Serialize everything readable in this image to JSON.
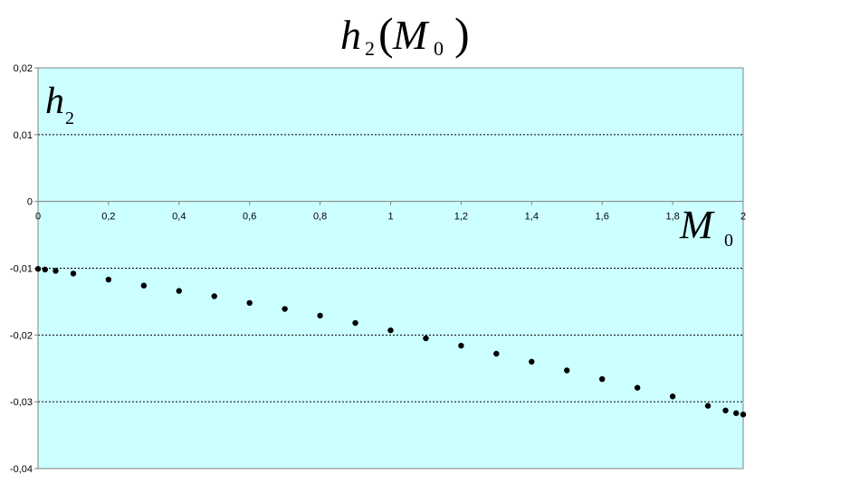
{
  "chart_data": {
    "type": "scatter",
    "title": {
      "func": "h",
      "func_sub": "2",
      "open": "(",
      "arg": "M",
      "arg_sub": "0",
      "close": ")"
    },
    "ylabel": {
      "main": "h",
      "sub": "2"
    },
    "xlabel": {
      "main": "M",
      "sub": "0"
    },
    "xlim": [
      0,
      2
    ],
    "ylim": [
      -0.04,
      0.02
    ],
    "x_ticks": [
      {
        "value": 0,
        "label": "0"
      },
      {
        "value": 0.2,
        "label": "0,2"
      },
      {
        "value": 0.4,
        "label": "0,4"
      },
      {
        "value": 0.6,
        "label": "0,6"
      },
      {
        "value": 0.8,
        "label": "0,8"
      },
      {
        "value": 1.0,
        "label": "1"
      },
      {
        "value": 1.2,
        "label": "1,2"
      },
      {
        "value": 1.4,
        "label": "1,4"
      },
      {
        "value": 1.6,
        "label": "1,6"
      },
      {
        "value": 1.8,
        "label": "1,8"
      },
      {
        "value": 2.0,
        "label": "2"
      }
    ],
    "y_ticks": [
      {
        "value": 0.02,
        "label": "0,02"
      },
      {
        "value": 0.01,
        "label": "0,01"
      },
      {
        "value": 0,
        "label": "0"
      },
      {
        "value": -0.01,
        "label": "-0,01"
      },
      {
        "value": -0.02,
        "label": "-0,02"
      },
      {
        "value": -0.03,
        "label": "-0,03"
      },
      {
        "value": -0.04,
        "label": "-0,04"
      }
    ],
    "grid_y_values": [
      0.01,
      -0.01,
      -0.02,
      -0.03
    ],
    "grid": true,
    "legend": false,
    "colors": {
      "plot_background": "#ccffff",
      "marker": "#000000",
      "grid": "#000000",
      "axis": "#808080"
    },
    "series": [
      {
        "x": [
          0,
          0.02,
          0.05,
          0.1,
          0.2,
          0.3,
          0.4,
          0.5,
          0.6,
          0.7,
          0.8,
          0.9,
          1.0,
          1.1,
          1.2,
          1.3,
          1.4,
          1.5,
          1.6,
          1.7,
          1.8,
          1.9,
          1.95,
          1.98,
          2.0
        ],
        "y": [
          -0.0101,
          -0.0102,
          -0.0104,
          -0.0108,
          -0.0117,
          -0.0126,
          -0.0134,
          -0.0142,
          -0.0152,
          -0.0161,
          -0.0171,
          -0.0182,
          -0.0193,
          -0.0205,
          -0.0216,
          -0.0228,
          -0.024,
          -0.0253,
          -0.0266,
          -0.0279,
          -0.0292,
          -0.0306,
          -0.0313,
          -0.0317,
          -0.0319
        ]
      }
    ]
  }
}
